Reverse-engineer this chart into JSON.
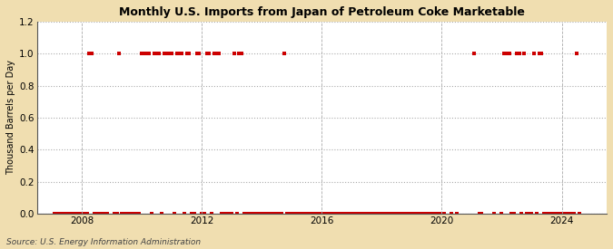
{
  "title": "Monthly U.S. Imports from Japan of Petroleum Coke Marketable",
  "ylabel": "Thousand Barrels per Day",
  "source": "Source: U.S. Energy Information Administration",
  "background_color": "#f0deb0",
  "plot_bg_color": "#ffffff",
  "ylim": [
    0,
    1.2
  ],
  "yticks": [
    0.0,
    0.2,
    0.4,
    0.6,
    0.8,
    1.0,
    1.2
  ],
  "xlim_start": 2006.5,
  "xlim_end": 2025.5,
  "xticks": [
    2008,
    2012,
    2016,
    2020,
    2024
  ],
  "marker_color": "#cc0000",
  "marker": "s",
  "marker_size": 2.5,
  "data_points": [
    [
      2007.0833,
      0
    ],
    [
      2007.1667,
      0
    ],
    [
      2007.25,
      0
    ],
    [
      2007.3333,
      0
    ],
    [
      2007.4167,
      0
    ],
    [
      2007.5,
      0
    ],
    [
      2007.5833,
      0
    ],
    [
      2007.6667,
      0
    ],
    [
      2007.75,
      0
    ],
    [
      2007.8333,
      0
    ],
    [
      2007.9167,
      0
    ],
    [
      2008.0,
      0
    ],
    [
      2008.0833,
      0
    ],
    [
      2008.1667,
      0
    ],
    [
      2008.25,
      1
    ],
    [
      2008.3333,
      1
    ],
    [
      2008.4167,
      0
    ],
    [
      2008.5,
      0
    ],
    [
      2008.5833,
      0
    ],
    [
      2008.6667,
      0
    ],
    [
      2008.75,
      0
    ],
    [
      2008.8333,
      0
    ],
    [
      2009.0833,
      0
    ],
    [
      2009.1667,
      0
    ],
    [
      2009.25,
      1
    ],
    [
      2009.3333,
      0
    ],
    [
      2009.4167,
      0
    ],
    [
      2009.5,
      0
    ],
    [
      2009.5833,
      0
    ],
    [
      2009.6667,
      0
    ],
    [
      2009.75,
      0
    ],
    [
      2009.8333,
      0
    ],
    [
      2009.9167,
      0
    ],
    [
      2010.0,
      1
    ],
    [
      2010.0833,
      1
    ],
    [
      2010.1667,
      1
    ],
    [
      2010.25,
      1
    ],
    [
      2010.3333,
      0
    ],
    [
      2010.4167,
      1
    ],
    [
      2010.5,
      1
    ],
    [
      2010.5833,
      1
    ],
    [
      2010.6667,
      0
    ],
    [
      2010.75,
      1
    ],
    [
      2010.8333,
      1
    ],
    [
      2010.9167,
      1
    ],
    [
      2011.0,
      1
    ],
    [
      2011.0833,
      0
    ],
    [
      2011.1667,
      1
    ],
    [
      2011.25,
      1
    ],
    [
      2011.3333,
      1
    ],
    [
      2011.4167,
      0
    ],
    [
      2011.5,
      1
    ],
    [
      2011.5833,
      1
    ],
    [
      2011.6667,
      0
    ],
    [
      2011.75,
      0
    ],
    [
      2011.8333,
      1
    ],
    [
      2011.9167,
      1
    ],
    [
      2012.0,
      0
    ],
    [
      2012.0833,
      0
    ],
    [
      2012.1667,
      1
    ],
    [
      2012.25,
      1
    ],
    [
      2012.3333,
      0
    ],
    [
      2012.4167,
      1
    ],
    [
      2012.5,
      1
    ],
    [
      2012.5833,
      1
    ],
    [
      2012.6667,
      0
    ],
    [
      2012.75,
      0
    ],
    [
      2012.8333,
      0
    ],
    [
      2012.9167,
      0
    ],
    [
      2013.0,
      0
    ],
    [
      2013.0833,
      1
    ],
    [
      2013.1667,
      0
    ],
    [
      2013.25,
      1
    ],
    [
      2013.3333,
      1
    ],
    [
      2013.4167,
      0
    ],
    [
      2013.5,
      0
    ],
    [
      2013.5833,
      0
    ],
    [
      2013.6667,
      0
    ],
    [
      2013.75,
      0
    ],
    [
      2013.8333,
      0
    ],
    [
      2013.9167,
      0
    ],
    [
      2014.0,
      0
    ],
    [
      2014.0833,
      0
    ],
    [
      2014.1667,
      0
    ],
    [
      2014.25,
      0
    ],
    [
      2014.3333,
      0
    ],
    [
      2014.4167,
      0
    ],
    [
      2014.5,
      0
    ],
    [
      2014.5833,
      0
    ],
    [
      2014.6667,
      0
    ],
    [
      2014.75,
      1
    ],
    [
      2014.8333,
      0
    ],
    [
      2014.9167,
      0
    ],
    [
      2015.0,
      0
    ],
    [
      2015.0833,
      0
    ],
    [
      2015.1667,
      0
    ],
    [
      2015.25,
      0
    ],
    [
      2015.3333,
      0
    ],
    [
      2015.4167,
      0
    ],
    [
      2015.5,
      0
    ],
    [
      2015.5833,
      0
    ],
    [
      2015.6667,
      0
    ],
    [
      2015.75,
      0
    ],
    [
      2015.8333,
      0
    ],
    [
      2015.9167,
      0
    ],
    [
      2016.0,
      0
    ],
    [
      2016.0833,
      0
    ],
    [
      2016.1667,
      0
    ],
    [
      2016.25,
      0
    ],
    [
      2016.3333,
      0
    ],
    [
      2016.4167,
      0
    ],
    [
      2016.5,
      0
    ],
    [
      2016.5833,
      0
    ],
    [
      2016.6667,
      0
    ],
    [
      2016.75,
      0
    ],
    [
      2016.8333,
      0
    ],
    [
      2016.9167,
      0
    ],
    [
      2017.0,
      0
    ],
    [
      2017.0833,
      0
    ],
    [
      2017.1667,
      0
    ],
    [
      2017.25,
      0
    ],
    [
      2017.3333,
      0
    ],
    [
      2017.4167,
      0
    ],
    [
      2017.5,
      0
    ],
    [
      2017.5833,
      0
    ],
    [
      2017.6667,
      0
    ],
    [
      2017.75,
      0
    ],
    [
      2017.8333,
      0
    ],
    [
      2017.9167,
      0
    ],
    [
      2018.0,
      0
    ],
    [
      2018.0833,
      0
    ],
    [
      2018.1667,
      0
    ],
    [
      2018.25,
      0
    ],
    [
      2018.3333,
      0
    ],
    [
      2018.4167,
      0
    ],
    [
      2018.5,
      0
    ],
    [
      2018.5833,
      0
    ],
    [
      2018.6667,
      0
    ],
    [
      2018.75,
      0
    ],
    [
      2018.8333,
      0
    ],
    [
      2018.9167,
      0
    ],
    [
      2019.0,
      0
    ],
    [
      2019.0833,
      0
    ],
    [
      2019.1667,
      0
    ],
    [
      2019.25,
      0
    ],
    [
      2019.3333,
      0
    ],
    [
      2019.4167,
      0
    ],
    [
      2019.5,
      0
    ],
    [
      2019.5833,
      0
    ],
    [
      2019.6667,
      0
    ],
    [
      2019.75,
      0
    ],
    [
      2019.8333,
      0
    ],
    [
      2019.9167,
      0
    ],
    [
      2020.0833,
      0
    ],
    [
      2020.3333,
      0
    ],
    [
      2020.5,
      0
    ],
    [
      2021.0833,
      1
    ],
    [
      2021.25,
      0
    ],
    [
      2021.3333,
      0
    ],
    [
      2021.75,
      0
    ],
    [
      2022.0,
      0
    ],
    [
      2022.0833,
      1
    ],
    [
      2022.1667,
      1
    ],
    [
      2022.25,
      1
    ],
    [
      2022.3333,
      0
    ],
    [
      2022.4167,
      0
    ],
    [
      2022.5,
      1
    ],
    [
      2022.5833,
      1
    ],
    [
      2022.6667,
      0
    ],
    [
      2022.75,
      1
    ],
    [
      2022.8333,
      0
    ],
    [
      2022.9167,
      0
    ],
    [
      2023.0,
      0
    ],
    [
      2023.0833,
      1
    ],
    [
      2023.1667,
      0
    ],
    [
      2023.25,
      1
    ],
    [
      2023.3333,
      1
    ],
    [
      2023.4167,
      0
    ],
    [
      2023.5,
      0
    ],
    [
      2023.5833,
      0
    ],
    [
      2023.6667,
      0
    ],
    [
      2023.75,
      0
    ],
    [
      2023.8333,
      0
    ],
    [
      2023.9167,
      0
    ],
    [
      2024.0,
      0
    ],
    [
      2024.0833,
      0
    ],
    [
      2024.1667,
      0
    ],
    [
      2024.25,
      0
    ],
    [
      2024.3333,
      0
    ],
    [
      2024.4167,
      0
    ],
    [
      2024.5,
      1
    ],
    [
      2024.5833,
      0
    ]
  ]
}
